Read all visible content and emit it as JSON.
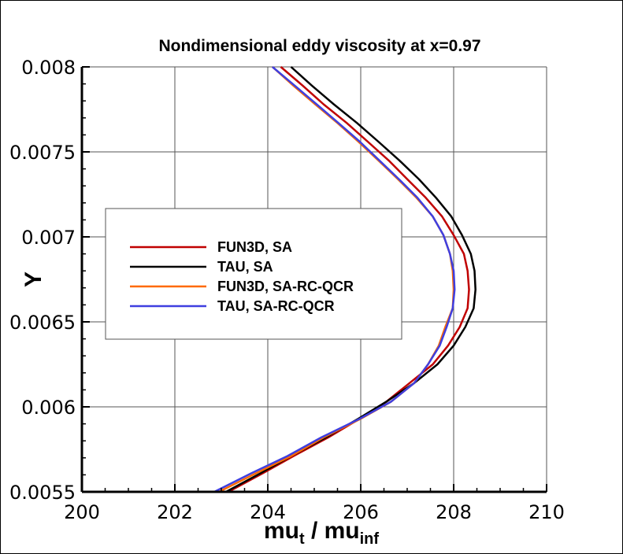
{
  "chart_data": {
    "type": "line",
    "title": "Nondimensional eddy viscosity at x=0.97",
    "xlabel": {
      "main": "mu",
      "sub1": "t",
      "mid": " / mu",
      "sub2": "inf"
    },
    "ylabel": "Y",
    "xlim": [
      200,
      210
    ],
    "ylim": [
      0.0055,
      0.008
    ],
    "x_ticks": [
      "200",
      "202",
      "204",
      "206",
      "208",
      "210"
    ],
    "y_ticks": [
      "0.0055",
      "0.006",
      "0.0065",
      "0.007",
      "0.0075",
      "0.008"
    ],
    "grid": true,
    "legend": "center-left",
    "series": [
      {
        "name": "FUN3D, SA",
        "color": "#c00000",
        "points": [
          [
            203.15,
            0.0055
          ],
          [
            203.9,
            0.00561
          ],
          [
            204.55,
            0.00571
          ],
          [
            205.3,
            0.00582
          ],
          [
            205.98,
            0.00593
          ],
          [
            206.55,
            0.00603
          ],
          [
            207.05,
            0.00614
          ],
          [
            207.55,
            0.00625
          ],
          [
            207.88,
            0.00636
          ],
          [
            208.13,
            0.00647
          ],
          [
            208.3,
            0.00658
          ],
          [
            208.33,
            0.00669
          ],
          [
            208.3,
            0.0068
          ],
          [
            208.22,
            0.0069
          ],
          [
            208.0,
            0.00701
          ],
          [
            207.75,
            0.00712
          ],
          [
            207.4,
            0.00723
          ],
          [
            207.0,
            0.00734
          ],
          [
            206.6,
            0.00745
          ],
          [
            206.15,
            0.00756
          ],
          [
            205.7,
            0.00767
          ],
          [
            205.2,
            0.00778
          ],
          [
            204.75,
            0.00789
          ],
          [
            204.28,
            0.008
          ]
        ]
      },
      {
        "name": "TAU, SA",
        "color": "#000000",
        "points": [
          [
            203.1,
            0.0055
          ],
          [
            203.85,
            0.00561
          ],
          [
            204.5,
            0.00571
          ],
          [
            205.25,
            0.00582
          ],
          [
            205.95,
            0.00593
          ],
          [
            206.55,
            0.00603
          ],
          [
            207.15,
            0.00614
          ],
          [
            207.65,
            0.00625
          ],
          [
            208.0,
            0.00636
          ],
          [
            208.25,
            0.00647
          ],
          [
            208.43,
            0.00658
          ],
          [
            208.47,
            0.00669
          ],
          [
            208.45,
            0.0068
          ],
          [
            208.37,
            0.0069
          ],
          [
            208.18,
            0.00701
          ],
          [
            207.95,
            0.00712
          ],
          [
            207.62,
            0.00723
          ],
          [
            207.25,
            0.00734
          ],
          [
            206.83,
            0.00745
          ],
          [
            206.38,
            0.00756
          ],
          [
            205.92,
            0.00767
          ],
          [
            205.42,
            0.00778
          ],
          [
            204.95,
            0.00789
          ],
          [
            204.5,
            0.008
          ]
        ]
      },
      {
        "name": "FUN3D, SA-RC-QCR",
        "color": "#ff6a00",
        "points": [
          [
            202.95,
            0.0055
          ],
          [
            203.75,
            0.00561
          ],
          [
            204.5,
            0.00571
          ],
          [
            205.2,
            0.00582
          ],
          [
            206.0,
            0.00593
          ],
          [
            206.65,
            0.00603
          ],
          [
            207.15,
            0.00614
          ],
          [
            207.45,
            0.00625
          ],
          [
            207.68,
            0.00636
          ],
          [
            207.82,
            0.00647
          ],
          [
            207.98,
            0.00658
          ],
          [
            208.0,
            0.00669
          ],
          [
            207.98,
            0.0068
          ],
          [
            207.92,
            0.0069
          ],
          [
            207.78,
            0.00701
          ],
          [
            207.55,
            0.00712
          ],
          [
            207.2,
            0.00723
          ],
          [
            206.8,
            0.00734
          ],
          [
            206.38,
            0.00745
          ],
          [
            205.95,
            0.00756
          ],
          [
            205.5,
            0.00767
          ],
          [
            205.02,
            0.00778
          ],
          [
            204.55,
            0.00789
          ],
          [
            204.1,
            0.008
          ]
        ]
      },
      {
        "name": "TAU, SA-RC-QCR",
        "color": "#3f3fe0",
        "points": [
          [
            202.85,
            0.0055
          ],
          [
            203.65,
            0.00561
          ],
          [
            204.42,
            0.00571
          ],
          [
            205.15,
            0.00582
          ],
          [
            205.98,
            0.00593
          ],
          [
            206.65,
            0.00603
          ],
          [
            207.15,
            0.00614
          ],
          [
            207.45,
            0.00625
          ],
          [
            207.7,
            0.00636
          ],
          [
            207.85,
            0.00647
          ],
          [
            207.98,
            0.00658
          ],
          [
            208.02,
            0.00669
          ],
          [
            208.0,
            0.0068
          ],
          [
            207.92,
            0.0069
          ],
          [
            207.78,
            0.00701
          ],
          [
            207.55,
            0.00712
          ],
          [
            207.22,
            0.00723
          ],
          [
            206.82,
            0.00734
          ],
          [
            206.4,
            0.00745
          ],
          [
            205.98,
            0.00756
          ],
          [
            205.52,
            0.00767
          ],
          [
            205.05,
            0.00778
          ],
          [
            204.58,
            0.00789
          ],
          [
            204.1,
            0.008
          ]
        ]
      }
    ]
  }
}
